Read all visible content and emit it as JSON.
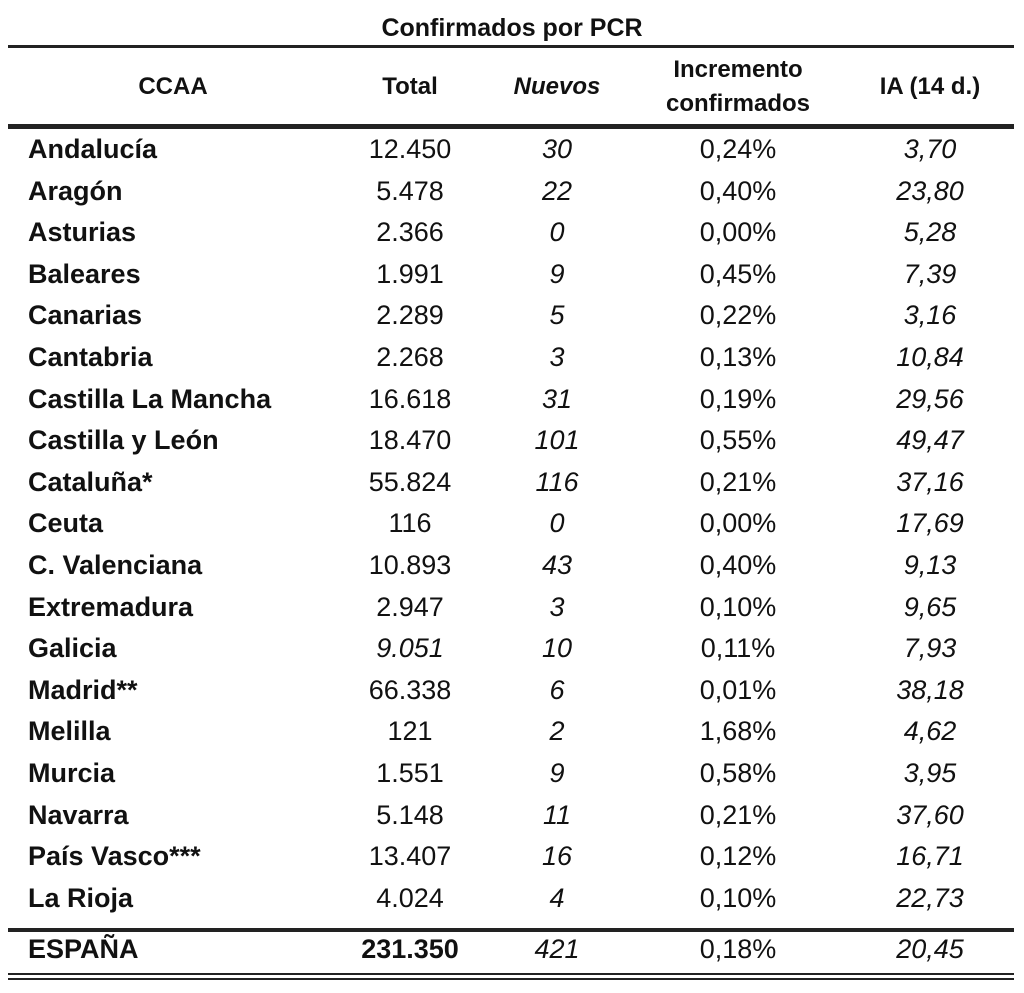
{
  "table": {
    "title": "Confirmados por PCR",
    "headers": [
      "CCAA",
      "Total",
      "Nuevos",
      "Incremento confirmados",
      "IA (14 d.)"
    ],
    "rows": [
      {
        "ccaa": "Andalucía",
        "total": "12.450",
        "nuevos": "30",
        "incremento": "0,24%",
        "ia": "3,70"
      },
      {
        "ccaa": "Aragón",
        "total": "5.478",
        "nuevos": "22",
        "incremento": "0,40%",
        "ia": "23,80"
      },
      {
        "ccaa": "Asturias",
        "total": "2.366",
        "nuevos": "0",
        "incremento": "0,00%",
        "ia": "5,28"
      },
      {
        "ccaa": "Baleares",
        "total": "1.991",
        "nuevos": "9",
        "incremento": "0,45%",
        "ia": "7,39"
      },
      {
        "ccaa": "Canarias",
        "total": "2.289",
        "nuevos": "5",
        "incremento": "0,22%",
        "ia": "3,16"
      },
      {
        "ccaa": "Cantabria",
        "total": "2.268",
        "nuevos": "3",
        "incremento": "0,13%",
        "ia": "10,84"
      },
      {
        "ccaa": "Castilla La Mancha",
        "total": "16.618",
        "nuevos": "31",
        "incremento": "0,19%",
        "ia": "29,56"
      },
      {
        "ccaa": "Castilla y León",
        "total": "18.470",
        "nuevos": "101",
        "incremento": "0,55%",
        "ia": "49,47"
      },
      {
        "ccaa": "Cataluña*",
        "total": "55.824",
        "nuevos": "116",
        "incremento": "0,21%",
        "ia": "37,16"
      },
      {
        "ccaa": "Ceuta",
        "total": "116",
        "nuevos": "0",
        "incremento": "0,00%",
        "ia": "17,69"
      },
      {
        "ccaa": "C. Valenciana",
        "total": "10.893",
        "nuevos": "43",
        "incremento": "0,40%",
        "ia": "9,13"
      },
      {
        "ccaa": "Extremadura",
        "total": "2.947",
        "nuevos": "3",
        "incremento": "0,10%",
        "ia": "9,65"
      },
      {
        "ccaa": "Galicia",
        "total": "9.051",
        "nuevos": "10",
        "incremento": "0,11%",
        "ia": "7,93",
        "total_italic": true
      },
      {
        "ccaa": "Madrid**",
        "total": "66.338",
        "nuevos": "6",
        "incremento": "0,01%",
        "ia": "38,18"
      },
      {
        "ccaa": "Melilla",
        "total": "121",
        "nuevos": "2",
        "incremento": "1,68%",
        "ia": "4,62"
      },
      {
        "ccaa": "Murcia",
        "total": "1.551",
        "nuevos": "9",
        "incremento": "0,58%",
        "ia": "3,95"
      },
      {
        "ccaa": "Navarra",
        "total": "5.148",
        "nuevos": "11",
        "incremento": "0,21%",
        "ia": "37,60"
      },
      {
        "ccaa": "País Vasco***",
        "total": "13.407",
        "nuevos": "16",
        "incremento": "0,12%",
        "ia": "16,71"
      },
      {
        "ccaa": "La Rioja",
        "total": "4.024",
        "nuevos": "4",
        "incremento": "0,10%",
        "ia": "22,73"
      }
    ],
    "total_row": {
      "ccaa": "ESPAÑA",
      "total": "231.350",
      "nuevos": "421",
      "incremento": "0,18%",
      "ia": "20,45"
    }
  }
}
